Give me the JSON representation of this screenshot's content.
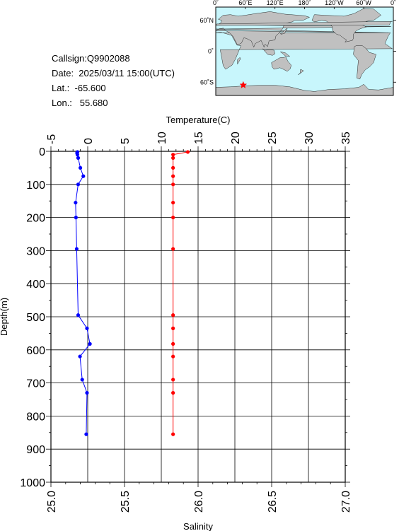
{
  "station": {
    "callsign_line": "Callsign:Q9902088",
    "date_line": "Date:  2025/03/11 15:00(UTC)",
    "lat_line": "Lat.:  -65.600",
    "lon_line": "Lon.:   55.680"
  },
  "map": {
    "lon_labels": [
      "0˚",
      "60˚E",
      "120˚E",
      "180˚",
      "120˚W",
      "60˚W",
      "0˚"
    ],
    "lat_labels": [
      "60˚N",
      "0˚",
      "60˚S"
    ],
    "marker_lon": 55.68,
    "marker_lat": -65.6,
    "ocean_color": "#c8f6fc",
    "land_color": "#c0c0c0",
    "marker_color": "#ff0000"
  },
  "chart_data": {
    "type": "line",
    "top_axis_label": "Temperature(C)",
    "bottom_axis_label": "Salinity",
    "ylabel": "Depth(m)",
    "temperature_range": [
      -5,
      35
    ],
    "temperature_ticks": [
      "-5",
      "0",
      "5",
      "10",
      "15",
      "20",
      "25",
      "30",
      "35"
    ],
    "salinity_range": [
      25.0,
      27.0
    ],
    "salinity_ticks": [
      "25.0",
      "25.5",
      "26.0",
      "26.5",
      "27.0"
    ],
    "depth_range": [
      0,
      1000
    ],
    "depth_ticks": [
      "0",
      "100",
      "200",
      "300",
      "400",
      "500",
      "600",
      "700",
      "800",
      "900",
      "1000"
    ],
    "grid": true,
    "series": [
      {
        "name": "Temperature",
        "axis": "top",
        "color": "#0000ff",
        "points": [
          {
            "depth": 2,
            "value": -1.4
          },
          {
            "depth": 5,
            "value": -1.45
          },
          {
            "depth": 10,
            "value": -1.4
          },
          {
            "depth": 20,
            "value": -1.3
          },
          {
            "depth": 50,
            "value": -1.0
          },
          {
            "depth": 75,
            "value": -0.6
          },
          {
            "depth": 100,
            "value": -1.3
          },
          {
            "depth": 155,
            "value": -1.65
          },
          {
            "depth": 200,
            "value": -1.6
          },
          {
            "depth": 295,
            "value": -1.5
          },
          {
            "depth": 495,
            "value": -1.3
          },
          {
            "depth": 535,
            "value": -0.1
          },
          {
            "depth": 582,
            "value": 0.3
          },
          {
            "depth": 620,
            "value": -1.05
          },
          {
            "depth": 690,
            "value": -0.75
          },
          {
            "depth": 730,
            "value": -0.1
          },
          {
            "depth": 855,
            "value": -0.2
          }
        ]
      },
      {
        "name": "Salinity",
        "axis": "bottom",
        "color": "#ff0000",
        "points": [
          {
            "depth": 2,
            "value": 25.93
          },
          {
            "depth": 10,
            "value": 25.83
          },
          {
            "depth": 20,
            "value": 25.83
          },
          {
            "depth": 50,
            "value": 25.83
          },
          {
            "depth": 75,
            "value": 25.83
          },
          {
            "depth": 100,
            "value": 25.83
          },
          {
            "depth": 155,
            "value": 25.83
          },
          {
            "depth": 200,
            "value": 25.83
          },
          {
            "depth": 295,
            "value": 25.83
          },
          {
            "depth": 495,
            "value": 25.83
          },
          {
            "depth": 535,
            "value": 25.83
          },
          {
            "depth": 582,
            "value": 25.83
          },
          {
            "depth": 620,
            "value": 25.83
          },
          {
            "depth": 690,
            "value": 25.83
          },
          {
            "depth": 730,
            "value": 25.83
          },
          {
            "depth": 855,
            "value": 25.83
          }
        ]
      }
    ]
  }
}
